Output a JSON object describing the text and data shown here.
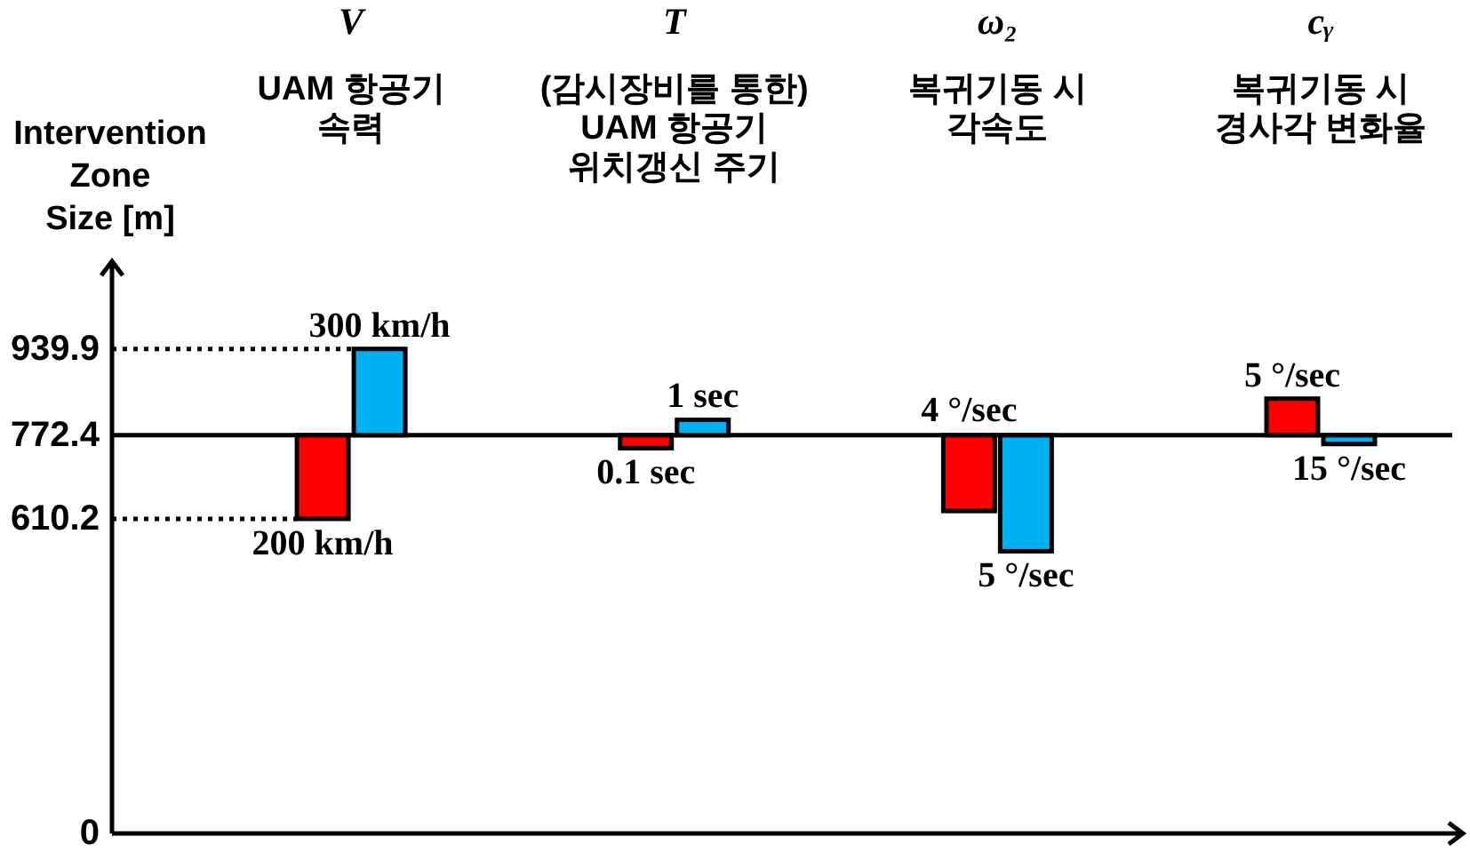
{
  "chart_data": {
    "type": "bar",
    "ylabel": "Intervention Zone Size [m]",
    "categories": [
      "V\nUAM 항공기\n속력",
      "T\n(감시장비를 통한)\nUAM 항공기\n위치갱신 주기",
      "ω₂\n복귀기동 시\n각속도",
      "cᵧ\n복귀기동 시\n경사각 변화율"
    ],
    "series": [
      {
        "color": "#ff0000",
        "base": [
          772.4,
          772.4,
          772.4,
          772.4
        ],
        "values": [
          -162.2,
          -25,
          -147,
          71
        ]
      },
      {
        "color": "#00b0f0",
        "base": [
          772.4,
          772.4,
          772.4,
          772.4
        ],
        "values": [
          167.5,
          30,
          -225,
          -17
        ]
      }
    ],
    "ylim": [
      0,
      1110
    ],
    "yticks": [
      0,
      610.2,
      772.4,
      939.9
    ],
    "ref_lines": [
      {
        "axis": "y",
        "value": 939.9,
        "line_style": "dotted",
        "color": "#000000"
      },
      {
        "axis": "y",
        "value": 610.2,
        "line_style": "dotted",
        "color": "#000000"
      },
      {
        "axis": "y",
        "value": 772.4,
        "line_style": "solid",
        "color": "#000000"
      }
    ],
    "annotations": [
      {
        "text": "200 km/h",
        "x": "V\nUAM 항공기\n속력",
        "y": 610.2
      },
      {
        "text": "300 km/h",
        "x": "V\nUAM 항공기\n속력",
        "y": 939.9
      },
      {
        "text": "0.1 sec",
        "x": "T\n(감시장비를 통한)\nUAM 항공기\n위치갱신 주기",
        "y": 747.4
      },
      {
        "text": "1 sec",
        "x": "T\n(감시장비를 통한)\nUAM 항공기\n위치갱신 주기",
        "y": 802.4
      },
      {
        "text": "4 °/sec",
        "x": "ω₂\n복귀기동 시\n각속도",
        "y": 625.4
      },
      {
        "text": "5 °/sec",
        "x": "ω₂\n복귀기동 시\n각속도",
        "y": 547.4
      },
      {
        "text": "5 °/sec",
        "x": "cᵧ\n복귀기동 시\n경사각 변화율",
        "y": 843.4
      },
      {
        "text": "15 °/sec",
        "x": "cᵧ\n복귀기동 시\n경사각 변화율",
        "y": 755.4
      }
    ]
  }
}
